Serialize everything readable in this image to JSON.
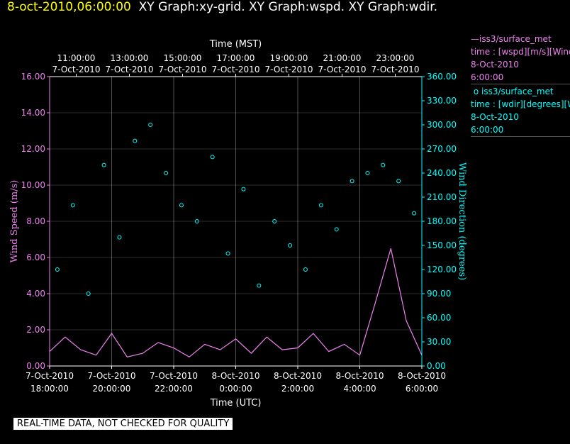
{
  "header": {
    "date": "8-oct-2010,06:00:00",
    "graphs": "XY Graph:xy-grid.  XY Graph:wspd.  XY Graph:wdir."
  },
  "legend": {
    "wspd": {
      "name": "iss3/surface_met",
      "var": "time : [wspd][m/s][Wind",
      "date": "8-Oct-2010",
      "time": "6:00:00",
      "color": "#ee82ee"
    },
    "wdir": {
      "name": "iss3/surface_met",
      "var": "time : [wdir][degrees][W",
      "date": "8-Oct-2010",
      "time": "6:00:00",
      "color": "#00ffff"
    }
  },
  "footer": {
    "qc_notice": "REAL-TIME DATA, NOT CHECKED FOR QUALITY"
  },
  "chart_data": {
    "type": "scatter",
    "top_axis": {
      "label": "Time (MST)",
      "ticks": [
        {
          "time": "11:00:00",
          "date": "7-Oct-2010"
        },
        {
          "time": "13:00:00",
          "date": "7-Oct-2010"
        },
        {
          "time": "15:00:00",
          "date": "7-Oct-2010"
        },
        {
          "time": "17:00:00",
          "date": "7-Oct-2010"
        },
        {
          "time": "19:00:00",
          "date": "7-Oct-2010"
        },
        {
          "time": "21:00:00",
          "date": "7-Oct-2010"
        },
        {
          "time": "23:00:00",
          "date": "7-Oct-2010"
        }
      ]
    },
    "bottom_axis": {
      "label": "Time (UTC)",
      "ticks": [
        {
          "date": "7-Oct-2010",
          "time": "18:00:00"
        },
        {
          "date": "7-Oct-2010",
          "time": "20:00:00"
        },
        {
          "date": "7-Oct-2010",
          "time": "22:00:00"
        },
        {
          "date": "8-Oct-2010",
          "time": "0:00:00"
        },
        {
          "date": "8-Oct-2010",
          "time": "2:00:00"
        },
        {
          "date": "8-Oct-2010",
          "time": "4:00:00"
        },
        {
          "date": "8-Oct-2010",
          "time": "6:00:00"
        }
      ],
      "xlim_utc": [
        "2010-10-07 18:00:00",
        "2010-10-08 06:00:00"
      ]
    },
    "left_axis": {
      "label": "Wind Speed (m/s)",
      "ylim": [
        0,
        16
      ],
      "ticks": [
        "0.00",
        "2.00",
        "4.00",
        "6.00",
        "8.00",
        "10.00",
        "12.00",
        "14.00",
        "16.00"
      ]
    },
    "right_axis": {
      "label": "Wind Direction (degrees)",
      "ylim": [
        0,
        360
      ],
      "ticks": [
        "0.00",
        "30.00",
        "60.00",
        "90.00",
        "120.00",
        "150.00",
        "180.00",
        "210.00",
        "240.00",
        "270.00",
        "300.00",
        "330.00",
        "360.00"
      ]
    },
    "grid": true,
    "series": [
      {
        "name": "iss3/surface_met wspd",
        "type": "line",
        "color": "#ee82ee",
        "axis": "left",
        "x": [
          "2010-10-07 18:00",
          "2010-10-07 18:30",
          "2010-10-07 19:00",
          "2010-10-07 19:30",
          "2010-10-07 20:00",
          "2010-10-07 20:30",
          "2010-10-07 21:00",
          "2010-10-07 21:30",
          "2010-10-07 22:00",
          "2010-10-07 22:30",
          "2010-10-07 23:00",
          "2010-10-07 23:30",
          "2010-10-08 00:00",
          "2010-10-08 00:30",
          "2010-10-08 01:00",
          "2010-10-08 01:30",
          "2010-10-08 02:00",
          "2010-10-08 02:30",
          "2010-10-08 03:00",
          "2010-10-08 03:30",
          "2010-10-08 04:00",
          "2010-10-08 04:30",
          "2010-10-08 05:00",
          "2010-10-08 05:30",
          "2010-10-08 06:00"
        ],
        "y": [
          0.8,
          1.6,
          0.9,
          0.6,
          1.8,
          0.5,
          0.7,
          1.3,
          1.0,
          0.5,
          1.2,
          0.9,
          1.5,
          0.7,
          1.6,
          0.9,
          1.0,
          1.8,
          0.8,
          1.2,
          0.6,
          3.5,
          6.5,
          2.5,
          0.6
        ]
      },
      {
        "name": "iss3/surface_met wdir",
        "type": "scatter",
        "color": "#00ffff",
        "axis": "right",
        "x": [
          "2010-10-07 18:15",
          "2010-10-07 18:45",
          "2010-10-07 19:15",
          "2010-10-07 19:45",
          "2010-10-07 20:15",
          "2010-10-07 20:45",
          "2010-10-07 21:15",
          "2010-10-07 21:45",
          "2010-10-07 22:15",
          "2010-10-07 22:45",
          "2010-10-07 23:15",
          "2010-10-07 23:45",
          "2010-10-08 00:15",
          "2010-10-08 00:45",
          "2010-10-08 01:15",
          "2010-10-08 01:45",
          "2010-10-08 02:15",
          "2010-10-08 02:45",
          "2010-10-08 03:15",
          "2010-10-08 03:45",
          "2010-10-08 04:15",
          "2010-10-08 04:45",
          "2010-10-08 05:15",
          "2010-10-08 05:45"
        ],
        "y": [
          120,
          200,
          90,
          250,
          160,
          280,
          300,
          240,
          200,
          180,
          260,
          140,
          220,
          100,
          180,
          150,
          120,
          200,
          170,
          230,
          240,
          250,
          230,
          190
        ]
      }
    ]
  }
}
